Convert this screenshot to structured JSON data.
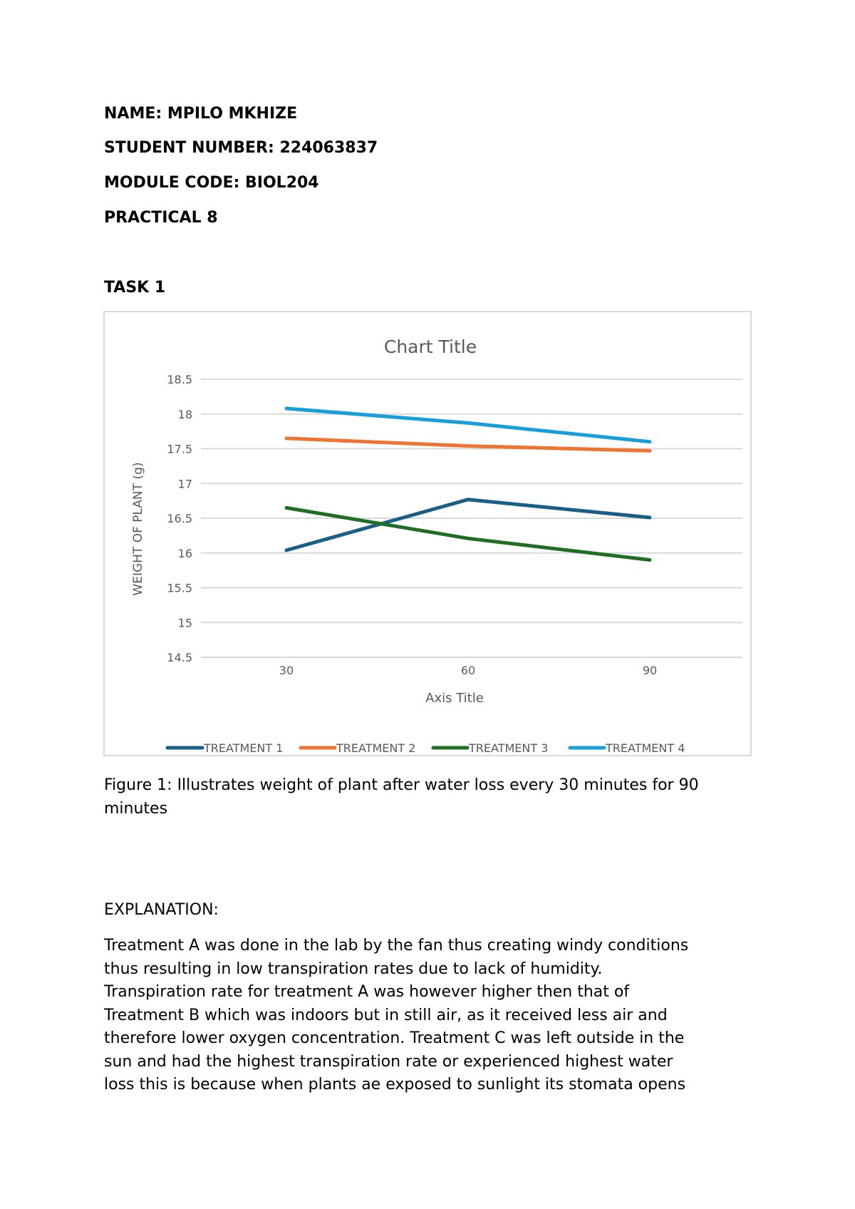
{
  "header": {
    "name": "NAME: MPILO MKHIZE",
    "student_number": "STUDENT NUMBER: 224063837",
    "module_code": "MODULE CODE: BIOL204",
    "practical": "PRACTICAL 8",
    "task": "TASK 1"
  },
  "chart": {
    "title": "Chart Title",
    "xlabel": "Axis Title",
    "ylabel": "WEIGHT OF PLANT (g)",
    "y_ticks": [
      "18.5",
      "18",
      "17.5",
      "17",
      "16.5",
      "16",
      "15.5",
      "15",
      "14.5"
    ],
    "x_ticks": [
      "30",
      "60",
      "90"
    ],
    "legend": [
      "TREATMENT 1",
      "TREATMENT 2",
      "TREATMENT 3",
      "TREATMENT 4"
    ],
    "colors": {
      "treatment1": "#1a5f87",
      "treatment2": "#ed7432",
      "treatment3": "#1f6e24",
      "treatment4": "#189fd9",
      "grid": "#d9d9d9",
      "axis_text": "#595959"
    }
  },
  "chart_data": {
    "type": "line",
    "title": "Chart Title",
    "xlabel": "Axis Title",
    "ylabel": "WEIGHT OF PLANT (g)",
    "categories": [
      30,
      60,
      90
    ],
    "series": [
      {
        "name": "TREATMENT 1",
        "values": [
          16.04,
          16.77,
          16.51
        ],
        "color": "#1a5f87"
      },
      {
        "name": "TREATMENT 2",
        "values": [
          17.65,
          17.54,
          17.47
        ],
        "color": "#ed7432"
      },
      {
        "name": "TREATMENT 3",
        "values": [
          16.65,
          16.21,
          15.9
        ],
        "color": "#1f6e24"
      },
      {
        "name": "TREATMENT 4",
        "values": [
          18.08,
          17.87,
          17.6
        ],
        "color": "#189fd9"
      }
    ],
    "ylim": [
      14.5,
      18.5
    ],
    "y_tick_step": 0.5,
    "grid": true,
    "legend_position": "bottom"
  },
  "caption": "Figure 1: Illustrates weight of plant after water loss every 30 minutes for 90 minutes",
  "explanation": {
    "heading": "EXPLANATION:",
    "lines": [
      "Treatment A was done in the lab by the fan thus creating windy conditions",
      "thus resulting in low transpiration rates due to lack of humidity.",
      "Transpiration rate for treatment A was however higher then that of",
      "Treatment B which was indoors but in still air, as it received less air and",
      "therefore lower oxygen concentration. Treatment C was left outside in the",
      "sun and had the highest transpiration rate or experienced highest water",
      "loss this is because when plants ae exposed to sunlight its stomata opens"
    ]
  }
}
